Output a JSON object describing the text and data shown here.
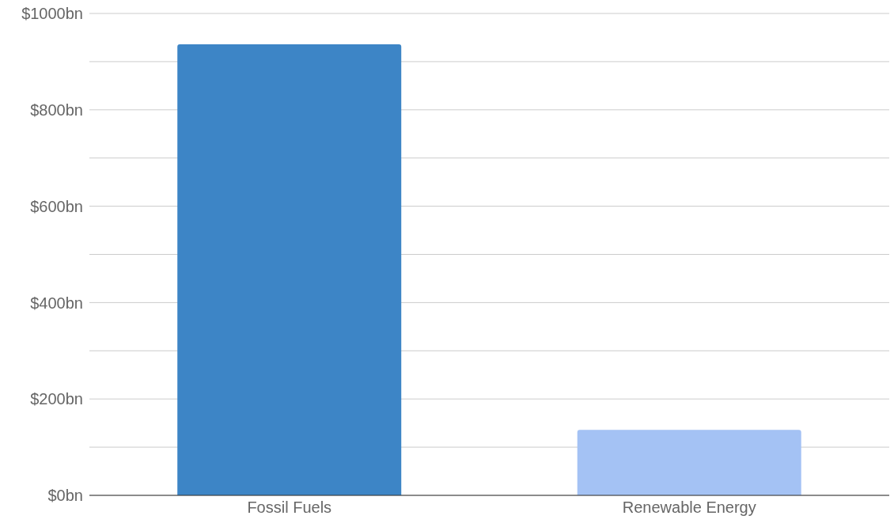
{
  "chart_data": {
    "type": "bar",
    "categories": [
      "Fossil Fuels",
      "Renewable Energy"
    ],
    "values": [
      936,
      136
    ],
    "colors": [
      "#3d85c6",
      "#a4c2f4"
    ],
    "ylim": [
      0,
      1000
    ],
    "yticks": [
      {
        "value": 0,
        "label": "$0bn"
      },
      {
        "value": 100,
        "label": null
      },
      {
        "value": 200,
        "label": "$200bn"
      },
      {
        "value": 300,
        "label": null
      },
      {
        "value": 400,
        "label": "$400bn"
      },
      {
        "value": 500,
        "label": null
      },
      {
        "value": 600,
        "label": "$600bn"
      },
      {
        "value": 700,
        "label": null
      },
      {
        "value": 800,
        "label": "$800bn"
      },
      {
        "value": 900,
        "label": null
      },
      {
        "value": 1000,
        "label": "$1000bn"
      }
    ],
    "grid": "y"
  }
}
